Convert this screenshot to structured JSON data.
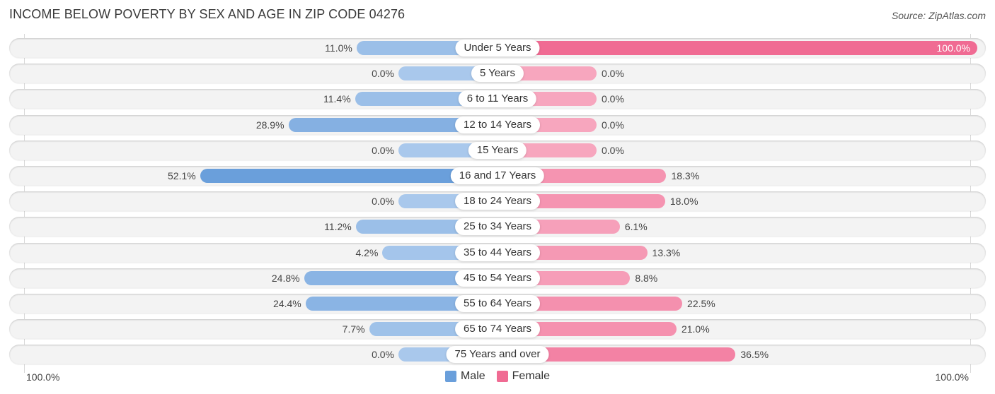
{
  "title": "INCOME BELOW POVERTY BY SEX AND AGE IN ZIP CODE 04276",
  "source": "Source: ZipAtlas.com",
  "colors": {
    "male_strong": "#6a9fdb",
    "male_light": "#a9c8ec",
    "female_strong": "#f06b93",
    "female_light": "#f7a6be",
    "row_bg": "#f3f3f3"
  },
  "chart_data": {
    "type": "bar",
    "orientation": "horizontal-diverging",
    "title": "INCOME BELOW POVERTY BY SEX AND AGE IN ZIP CODE 04276",
    "categories": [
      "Under 5 Years",
      "5 Years",
      "6 to 11 Years",
      "12 to 14 Years",
      "15 Years",
      "16 and 17 Years",
      "18 to 24 Years",
      "25 to 34 Years",
      "35 to 44 Years",
      "45 to 54 Years",
      "55 to 64 Years",
      "65 to 74 Years",
      "75 Years and over"
    ],
    "series": [
      {
        "name": "Male",
        "values": [
          11.0,
          0.0,
          11.4,
          28.9,
          0.0,
          52.1,
          0.0,
          11.2,
          4.2,
          24.8,
          24.4,
          7.7,
          0.0
        ]
      },
      {
        "name": "Female",
        "values": [
          100.0,
          0.0,
          0.0,
          0.0,
          0.0,
          18.3,
          18.0,
          6.1,
          13.3,
          8.8,
          22.5,
          21.0,
          36.5
        ]
      }
    ],
    "value_labels": {
      "Male": [
        "11.0%",
        "0.0%",
        "11.4%",
        "28.9%",
        "0.0%",
        "52.1%",
        "0.0%",
        "11.2%",
        "4.2%",
        "24.8%",
        "24.4%",
        "7.7%",
        "0.0%"
      ],
      "Female": [
        "100.0%",
        "0.0%",
        "0.0%",
        "0.0%",
        "0.0%",
        "18.3%",
        "18.0%",
        "6.1%",
        "13.3%",
        "8.8%",
        "22.5%",
        "21.0%",
        "36.5%"
      ]
    },
    "xlim": [
      0,
      100
    ],
    "axis_left_label": "100.0%",
    "axis_right_label": "100.0%",
    "unit": "%",
    "legend": {
      "position": "bottom-center",
      "entries": [
        "Male",
        "Female"
      ]
    },
    "grid": false
  }
}
